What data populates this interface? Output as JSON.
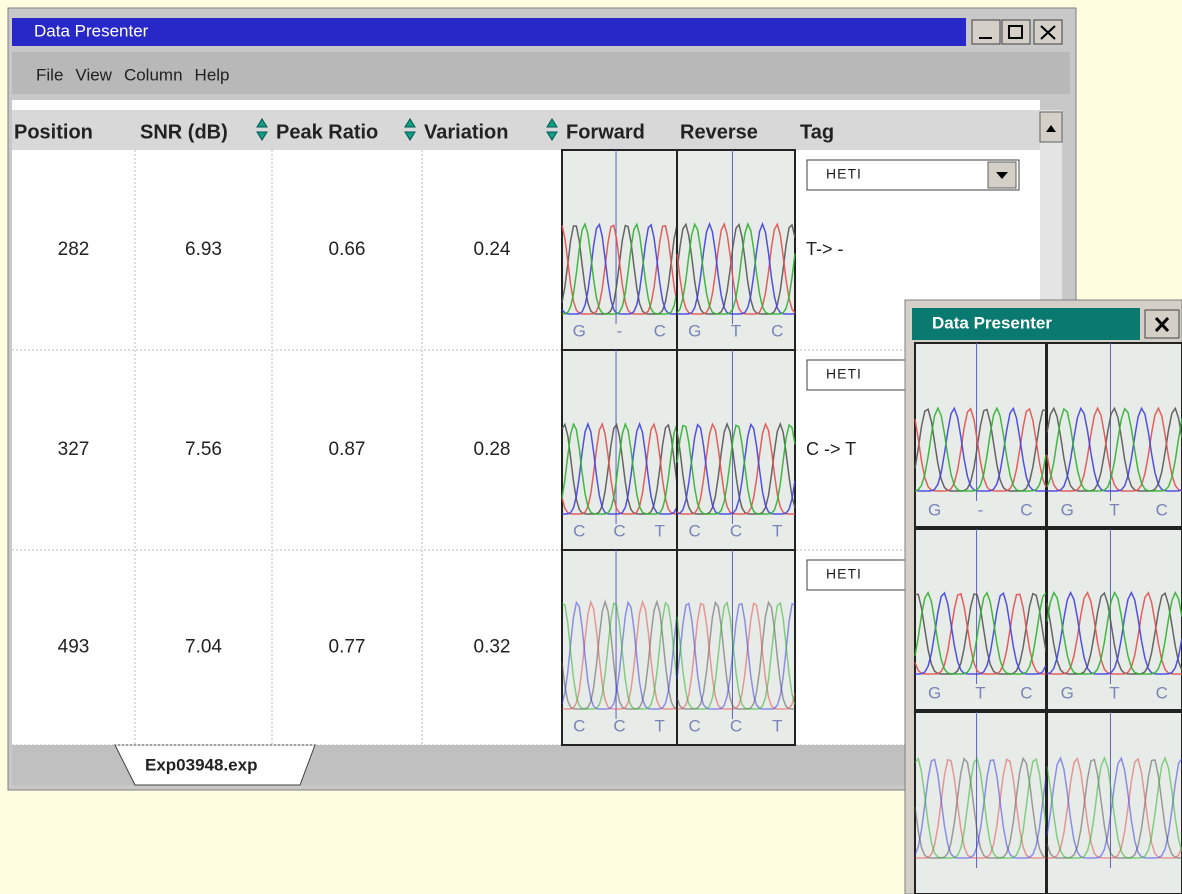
{
  "window": {
    "title": "Data Presenter",
    "menu": [
      "File",
      "View",
      "Column",
      "Help"
    ]
  },
  "table": {
    "headers": [
      "Position",
      "SNR (dB)",
      "Peak Ratio",
      "Variation",
      "Forward",
      "Reverse",
      "Tag"
    ],
    "rows": [
      {
        "cells": [
          "282",
          "6.93",
          "0.66",
          "0.24"
        ],
        "forward": [
          "G",
          "-",
          "C"
        ],
        "reverse": [
          "G",
          "T",
          "C"
        ],
        "tag": "HETI",
        "note": "T-> -"
      },
      {
        "cells": [
          "327",
          "7.56",
          "0.87",
          "0.28"
        ],
        "forward": [
          "C",
          "C",
          "T"
        ],
        "reverse": [
          "C",
          "C",
          "T"
        ],
        "tag": "HETI",
        "note": "C -> T"
      },
      {
        "cells": [
          "493",
          "7.04",
          "0.77",
          "0.32"
        ],
        "forward": [
          "C",
          "C",
          "T"
        ],
        "reverse": [
          "C",
          "C",
          "T"
        ],
        "tag": "HETI"
      }
    ]
  },
  "tab": "Exp03948.exp",
  "popup": {
    "title": "Data Presenter",
    "rows": [
      {
        "left": [
          "G",
          "-",
          "C"
        ],
        "right": [
          "G",
          "T",
          "C"
        ]
      },
      {
        "left": [
          "G",
          "T",
          "C"
        ],
        "right": [
          "G",
          "T",
          "C"
        ]
      },
      {}
    ]
  }
}
